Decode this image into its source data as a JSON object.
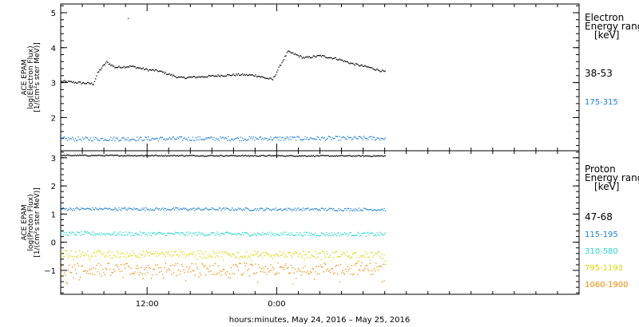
{
  "chart_data": [
    {
      "type": "scatter",
      "panel": "electron",
      "ylabel_lines": [
        "ACE EPAM",
        "log(Electron Flux)",
        "[1/(cm²s ster MeV)]"
      ],
      "legend_title_lines": [
        "Electron",
        "Energy ranges",
        "[keV]"
      ],
      "yticks": [
        "2",
        "3",
        "4",
        "5"
      ],
      "ylim": [
        1.05,
        5.25
      ],
      "grid": false,
      "series": [
        {
          "name": "38-53",
          "color": "#000000",
          "profile_hours": [
            0,
            3,
            3.4,
            4.2,
            5,
            6.5,
            8,
            9,
            11,
            13,
            15,
            16.5,
            18,
            19,
            19.6,
            20.1,
            21,
            22.5,
            24,
            25.5,
            27,
            28.5,
            30
          ],
          "profile_values": [
            3.05,
            2.98,
            3.3,
            3.6,
            3.45,
            3.48,
            3.38,
            3.35,
            3.15,
            3.18,
            3.22,
            3.24,
            3.22,
            3.14,
            3.1,
            3.4,
            3.9,
            3.72,
            3.78,
            3.7,
            3.55,
            3.45,
            3.32
          ],
          "spike": {
            "hour": 6.2,
            "value": 4.85
          }
        },
        {
          "name": "175-315",
          "color": "#1f7fd4",
          "profile_hours": [
            0,
            30
          ],
          "profile_values": [
            1.4,
            1.42
          ]
        }
      ]
    },
    {
      "type": "scatter",
      "panel": "proton",
      "ylabel_lines": [
        "ACE EPAM",
        "log(Proton Flux)",
        "[1/(cm²s ster MeV)]"
      ],
      "legend_title_lines": [
        "Proton",
        "Energy ranges",
        "[keV]"
      ],
      "yticks": [
        "−1",
        "0",
        "1",
        "2",
        "3"
      ],
      "ylim": [
        -1.85,
        3.25
      ],
      "grid": false,
      "series": [
        {
          "name": "47-68",
          "color": "#000000",
          "profile_hours": [
            0,
            30
          ],
          "profile_values": [
            3.1,
            3.08
          ]
        },
        {
          "name": "115-195",
          "color": "#1f7fd4",
          "profile_hours": [
            0,
            30
          ],
          "profile_values": [
            1.2,
            1.18
          ]
        },
        {
          "name": "310-580",
          "color": "#22d8d0",
          "profile_hours": [
            0,
            30
          ],
          "profile_values": [
            0.32,
            0.3
          ]
        },
        {
          "name": "795-1193",
          "color": "#d8d800",
          "profile_hours": [
            0,
            30
          ],
          "profile_values": [
            -0.4,
            -0.42
          ]
        },
        {
          "name": "1060-1900",
          "color": "#f08a00",
          "profile_hours": [
            0,
            30
          ],
          "profile_values": [
            -0.95,
            -0.92
          ]
        }
      ]
    }
  ],
  "xaxis": {
    "range_hours": [
      0,
      48
    ],
    "ticks": [
      {
        "hour": 8,
        "label": "12:00"
      },
      {
        "hour": 20,
        "label": "0:00"
      }
    ],
    "minor_hours": [
      2,
      4,
      6,
      10,
      12,
      14,
      16,
      18,
      22,
      24,
      26,
      28,
      30,
      32,
      34,
      36,
      38,
      40,
      42,
      44,
      46
    ],
    "xlabel": "hours:minutes, May 24, 2016 – May 25, 2016"
  }
}
